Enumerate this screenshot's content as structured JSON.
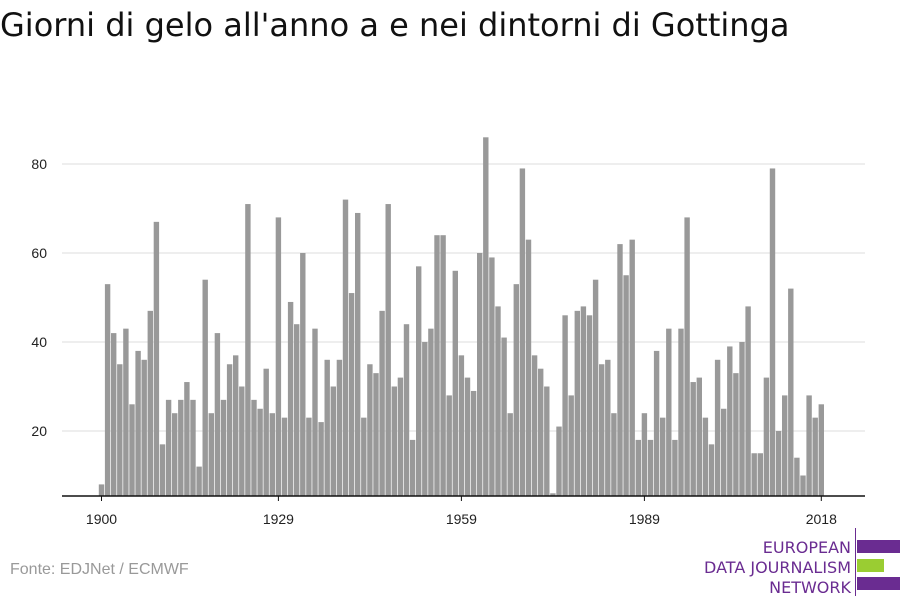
{
  "title": "Giorni di gelo all'anno a e nei dintorni di Gottinga",
  "source": "Fonte: EDJNet / ECMWF",
  "logo": {
    "lines": [
      "EUROPEAN",
      "DATA JOURNALISM",
      "NETWORK"
    ],
    "colors": {
      "purple": "#6a2c91",
      "green": "#9acd32"
    }
  },
  "chart_data": {
    "type": "bar",
    "title": "Giorni di gelo all'anno a e nei dintorni di Gottinga",
    "xlabel": "",
    "ylabel": "",
    "bar_color": "#999999",
    "grid": true,
    "ylim": [
      5,
      90
    ],
    "yticks": [
      20,
      40,
      60,
      80
    ],
    "xticks": [
      1900,
      1929,
      1959,
      1989,
      2018
    ],
    "x": [
      1900,
      1901,
      1902,
      1903,
      1904,
      1905,
      1906,
      1907,
      1908,
      1909,
      1910,
      1911,
      1912,
      1913,
      1914,
      1915,
      1916,
      1917,
      1918,
      1919,
      1920,
      1921,
      1922,
      1923,
      1924,
      1925,
      1926,
      1927,
      1928,
      1929,
      1930,
      1931,
      1932,
      1933,
      1934,
      1935,
      1936,
      1937,
      1938,
      1939,
      1940,
      1941,
      1942,
      1943,
      1944,
      1945,
      1946,
      1947,
      1948,
      1949,
      1950,
      1951,
      1952,
      1953,
      1954,
      1955,
      1956,
      1957,
      1958,
      1959,
      1960,
      1961,
      1962,
      1963,
      1964,
      1965,
      1966,
      1967,
      1968,
      1969,
      1970,
      1971,
      1972,
      1973,
      1974,
      1975,
      1976,
      1977,
      1978,
      1979,
      1980,
      1981,
      1982,
      1983,
      1984,
      1985,
      1986,
      1987,
      1988,
      1989,
      1990,
      1991,
      1992,
      1993,
      1994,
      1995,
      1996,
      1997,
      1998,
      1999,
      2000,
      2001,
      2002,
      2003,
      2004,
      2005,
      2006,
      2007,
      2008,
      2009,
      2010,
      2011,
      2012,
      2013,
      2014,
      2015,
      2016,
      2017,
      2018
    ],
    "values": [
      8,
      53,
      42,
      35,
      43,
      26,
      38,
      36,
      47,
      67,
      17,
      27,
      24,
      27,
      31,
      27,
      12,
      54,
      24,
      42,
      27,
      35,
      37,
      30,
      71,
      27,
      25,
      34,
      24,
      68,
      23,
      49,
      44,
      60,
      23,
      43,
      22,
      36,
      30,
      36,
      72,
      51,
      69,
      23,
      35,
      33,
      47,
      71,
      30,
      32,
      44,
      18,
      57,
      40,
      43,
      64,
      64,
      28,
      56,
      37,
      32,
      29,
      60,
      86,
      59,
      48,
      41,
      24,
      53,
      79,
      63,
      37,
      34,
      30,
      6,
      21,
      46,
      28,
      47,
      48,
      46,
      54,
      35,
      36,
      24,
      62,
      55,
      63,
      18,
      24,
      18,
      38,
      23,
      43,
      18,
      43,
      68,
      31,
      32,
      23,
      17,
      36,
      25,
      39,
      33,
      40,
      48,
      15,
      15,
      32,
      79,
      20,
      28,
      52,
      14,
      10,
      28,
      23,
      26
    ]
  }
}
